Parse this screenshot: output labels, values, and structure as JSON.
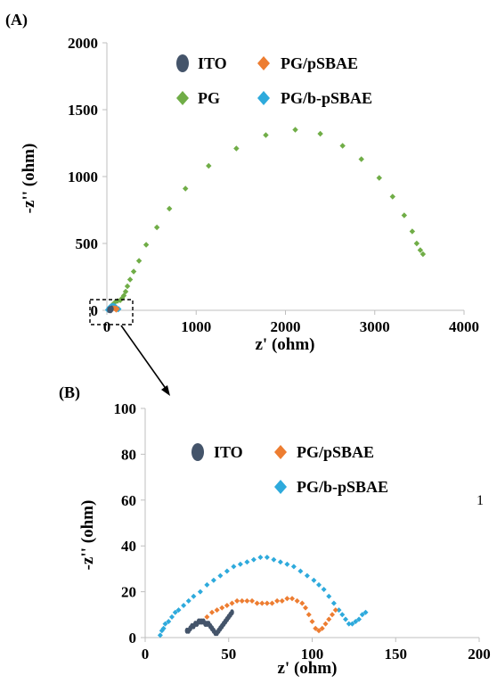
{
  "figure": {
    "stray_char": "1"
  },
  "chart_data": [
    {
      "type": "scatter",
      "panel_label": "(A)",
      "xlabel": "z' (ohm)",
      "ylabel": "-z'' (ohm)",
      "xlim": [
        0,
        4000
      ],
      "ylim": [
        0,
        2000
      ],
      "xticks": [
        "0",
        "1000",
        "2000",
        "3000",
        "4000"
      ],
      "yticks": [
        "0",
        "500",
        "1000",
        "1500",
        "2000"
      ],
      "legend": [
        {
          "name": "ITO",
          "color": "#44546a",
          "marker": "ellipse"
        },
        {
          "name": "PG/pSBAE",
          "color": "#ed7d31",
          "marker": "diamond"
        },
        {
          "name": "PG",
          "color": "#70ad47",
          "marker": "diamond"
        },
        {
          "name": "PG/b-pSBAE",
          "color": "#2eaadc",
          "marker": "diamond"
        }
      ],
      "series": [
        {
          "name": "PG",
          "color": "#70ad47",
          "x": [
            60,
            90,
            120,
            150,
            170,
            190,
            210,
            230,
            260,
            300,
            360,
            440,
            560,
            700,
            880,
            1140,
            1450,
            1780,
            2110,
            2390,
            2640,
            2850,
            3050,
            3200,
            3330,
            3420,
            3470,
            3510,
            3540
          ],
          "y": [
            40,
            60,
            70,
            75,
            90,
            110,
            140,
            180,
            230,
            290,
            370,
            490,
            620,
            760,
            910,
            1080,
            1210,
            1310,
            1350,
            1320,
            1230,
            1130,
            990,
            850,
            710,
            590,
            500,
            450,
            420
          ]
        },
        {
          "name": "PG/b-pSBAE",
          "color": "#2eaadc",
          "x": [
            10,
            20,
            30,
            45,
            60,
            75,
            90,
            105,
            115,
            125,
            132
          ],
          "y": [
            3,
            12,
            22,
            30,
            34,
            35,
            31,
            22,
            12,
            6,
            10
          ]
        },
        {
          "name": "PG/pSBAE",
          "color": "#ed7d31",
          "x": [
            38,
            50,
            65,
            80,
            95,
            104,
            112
          ],
          "y": [
            8,
            14,
            16,
            15,
            16,
            4,
            12
          ]
        },
        {
          "name": "ITO",
          "color": "#44546a",
          "x": [
            26,
            32,
            38,
            42,
            48,
            53
          ],
          "y": [
            3,
            7,
            6,
            2,
            7,
            11
          ]
        }
      ]
    },
    {
      "type": "scatter",
      "panel_label": "(B)",
      "xlabel": "z' (ohm)",
      "ylabel": "-z'' (ohm)",
      "xlim": [
        0,
        200
      ],
      "ylim": [
        0,
        100
      ],
      "xticks": [
        "0",
        "50",
        "100",
        "150",
        "200"
      ],
      "yticks": [
        "0",
        "20",
        "40",
        "60",
        "80",
        "100"
      ],
      "legend": [
        {
          "name": "ITO",
          "color": "#44546a",
          "marker": "ellipse"
        },
        {
          "name": "PG/pSBAE",
          "color": "#ed7d31",
          "marker": "diamond"
        },
        {
          "name": "PG/b-pSBAE",
          "color": "#2eaadc",
          "marker": "diamond"
        }
      ],
      "series": [
        {
          "name": "PG/b-pSBAE",
          "color": "#2eaadc",
          "x": [
            9,
            10,
            11,
            12,
            14,
            16,
            18,
            20,
            23,
            26,
            29,
            33,
            37,
            41,
            45,
            49,
            53,
            57,
            61,
            65,
            69,
            73,
            77,
            81,
            85,
            89,
            93,
            97,
            101,
            104,
            107,
            110,
            113,
            116,
            118,
            120,
            122,
            124,
            126,
            128,
            130,
            132
          ],
          "y": [
            1,
            3,
            4,
            6,
            7,
            9,
            11,
            12,
            14,
            16,
            18,
            20,
            23,
            25,
            27,
            29,
            31,
            32,
            33,
            34,
            35,
            35,
            34,
            33,
            32,
            31,
            29,
            27,
            25,
            23,
            21,
            18,
            15,
            12,
            10,
            8,
            6,
            6,
            7,
            8,
            10,
            11
          ]
        },
        {
          "name": "PG/pSBAE",
          "color": "#ed7d31",
          "x": [
            37,
            40,
            43,
            46,
            49,
            52,
            55,
            58,
            61,
            64,
            67,
            70,
            73,
            76,
            79,
            82,
            85,
            88,
            91,
            94,
            96,
            98,
            100,
            102,
            104,
            106,
            108,
            110,
            112,
            114
          ],
          "y": [
            9,
            11,
            12,
            13,
            14,
            15,
            16,
            16,
            16,
            16,
            15,
            15,
            15,
            15,
            16,
            16,
            17,
            17,
            16,
            15,
            13,
            10,
            7,
            4,
            3,
            4,
            6,
            8,
            10,
            12
          ]
        },
        {
          "name": "ITO",
          "color": "#44546a",
          "x": [
            25,
            26,
            27,
            28,
            29,
            30,
            31,
            32,
            33,
            34,
            35,
            36,
            37,
            38,
            39,
            40,
            41,
            42,
            43,
            44,
            45,
            46,
            47,
            48,
            49,
            50,
            51,
            52
          ],
          "y": [
            3,
            3,
            4,
            5,
            5,
            6,
            6,
            7,
            7,
            7,
            7,
            6,
            6,
            6,
            5,
            4,
            3,
            2,
            2,
            3,
            4,
            5,
            6,
            7,
            8,
            9,
            10,
            11
          ]
        }
      ]
    }
  ]
}
